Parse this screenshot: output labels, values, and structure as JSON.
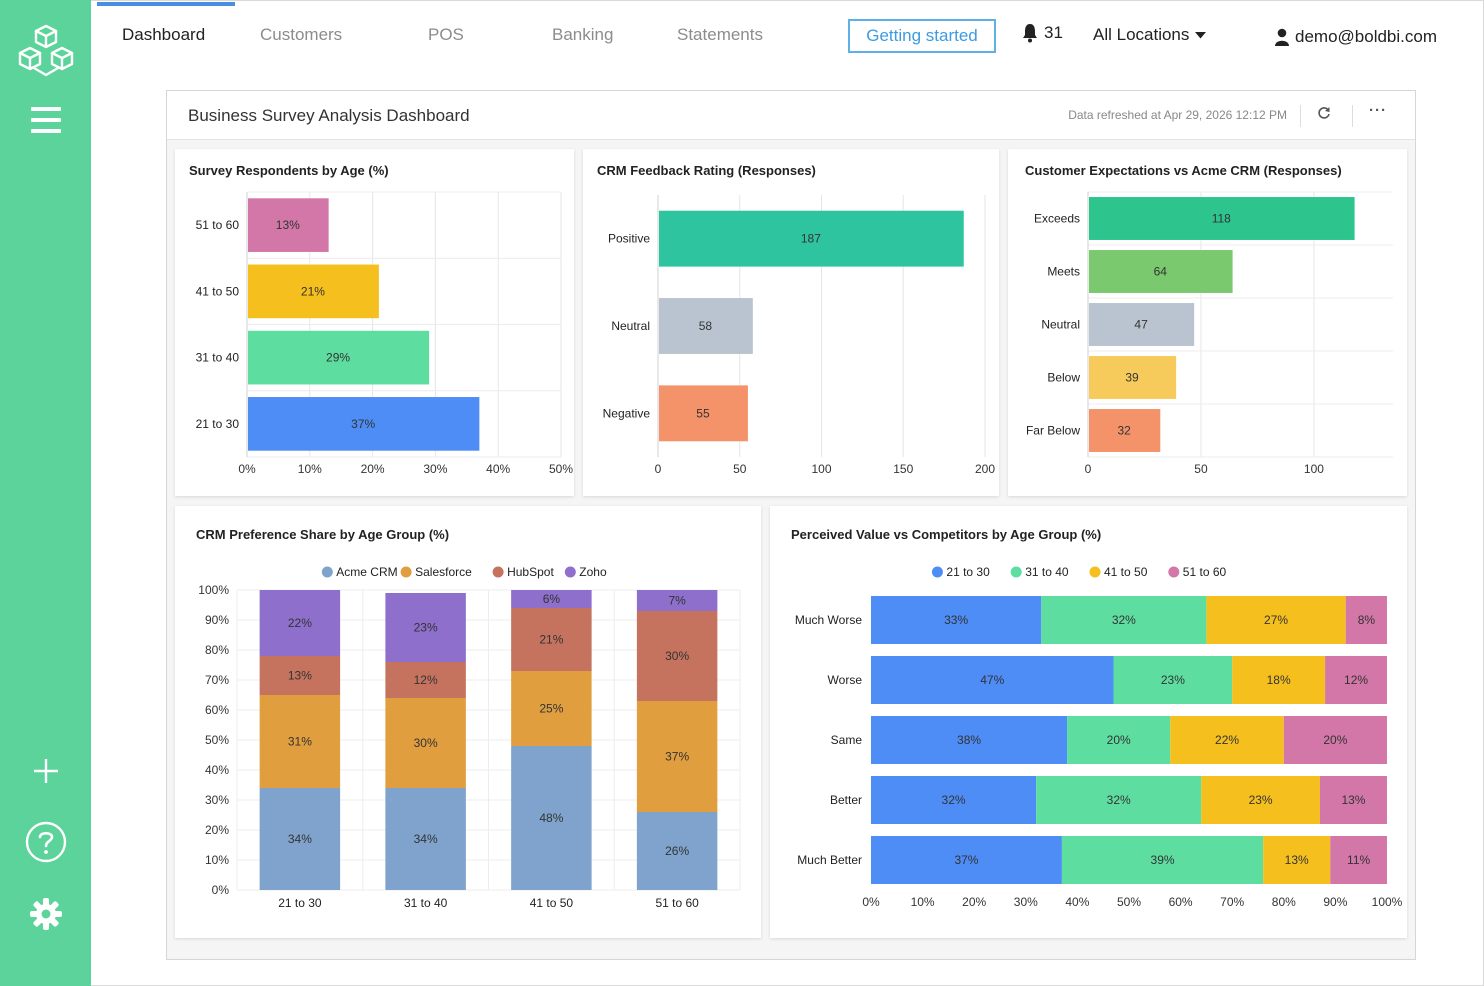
{
  "nav": {
    "tabs": [
      {
        "label": "Dashboard",
        "active": true
      },
      {
        "label": "Customers",
        "active": false
      },
      {
        "label": "POS",
        "active": false
      },
      {
        "label": "Banking",
        "active": false
      },
      {
        "label": "Statements",
        "active": false
      }
    ],
    "getting_started": "Getting started",
    "notifications_count": "31",
    "location": "All Locations",
    "user_email": "demo@boldbi.com"
  },
  "sidebar": {
    "icons": [
      "logo-cube-icon",
      "menu-icon",
      "add-icon",
      "help-icon",
      "settings-icon"
    ]
  },
  "dashboard": {
    "title": "Business Survey Analysis Dashboard",
    "refreshed": "Data refreshed at Apr 29, 2026 12:12 PM",
    "refresh_icon": "refresh-icon",
    "more_icon": "more-options-icon",
    "more_label": "···"
  },
  "colors": {
    "accent": "#5bd39a",
    "brand_blue": "#4a8ee0"
  },
  "chart_data": [
    {
      "id": "age",
      "type": "bar",
      "orientation": "horizontal",
      "title": "Survey Respondents by Age (%)",
      "categories": [
        "51 to 60",
        "41 to 50",
        "31 to 40",
        "21 to 30"
      ],
      "values": [
        13,
        21,
        29,
        37
      ],
      "labels": [
        "13%",
        "21%",
        "29%",
        "37%"
      ],
      "colors": [
        "#d277a8",
        "#f5bf1d",
        "#5ddea0",
        "#4e8cf6"
      ],
      "xlim": [
        0,
        50
      ],
      "ticks": [
        "0%",
        "10%",
        "20%",
        "30%",
        "40%",
        "50%"
      ]
    },
    {
      "id": "feedback",
      "type": "bar",
      "orientation": "horizontal",
      "title": "CRM Feedback Rating (Responses)",
      "categories": [
        "Positive",
        "Neutral",
        "Negative"
      ],
      "values": [
        187,
        58,
        55
      ],
      "labels": [
        "187",
        "58",
        "55"
      ],
      "colors": [
        "#2ec4a0",
        "#b9c4d0",
        "#f4926a"
      ],
      "xlim": [
        0,
        200
      ],
      "ticks": [
        "0",
        "50",
        "100",
        "150",
        "200"
      ]
    },
    {
      "id": "expect",
      "type": "bar",
      "orientation": "horizontal",
      "title": "Customer Expectations vs Acme CRM (Responses)",
      "categories": [
        "Exceeds",
        "Meets",
        "Neutral",
        "Below",
        "Far Below"
      ],
      "values": [
        118,
        64,
        47,
        39,
        32
      ],
      "labels": [
        "118",
        "64",
        "47",
        "39",
        "32"
      ],
      "colors": [
        "#2ec48e",
        "#7ac96e",
        "#b9c4d0",
        "#f7cb5b",
        "#f4926a"
      ],
      "xlim": [
        0,
        135
      ],
      "ticks": [
        "0",
        "50",
        "100"
      ],
      "tick_values": [
        0,
        50,
        100
      ]
    },
    {
      "id": "pref",
      "type": "bar",
      "orientation": "vertical",
      "stacked": true,
      "title": "CRM Preference Share by Age Group (%)",
      "categories": [
        "21 to 30",
        "31 to 40",
        "41 to 50",
        "51 to 60"
      ],
      "series": [
        {
          "name": "Acme CRM",
          "color": "#7fa3cc",
          "values": [
            34,
            34,
            48,
            26
          ]
        },
        {
          "name": "Salesforce",
          "color": "#e09e3f",
          "values": [
            31,
            30,
            25,
            37
          ]
        },
        {
          "name": "HubSpot",
          "color": "#c5735e",
          "values": [
            13,
            12,
            21,
            30
          ]
        },
        {
          "name": "Zoho",
          "color": "#8e6fcc",
          "values": [
            22,
            23,
            6,
            7
          ]
        }
      ],
      "ylim": [
        0,
        100
      ],
      "ticks": [
        "0%",
        "10%",
        "20%",
        "30%",
        "40%",
        "50%",
        "60%",
        "70%",
        "80%",
        "90%",
        "100%"
      ],
      "legend": "top"
    },
    {
      "id": "value",
      "type": "bar",
      "orientation": "horizontal",
      "stacked": true,
      "title": "Perceived Value vs Competitors by Age Group (%)",
      "categories": [
        "Much Worse",
        "Worse",
        "Same",
        "Better",
        "Much Better"
      ],
      "series": [
        {
          "name": "21 to 30",
          "color": "#4e8cf6",
          "values": [
            33,
            47,
            38,
            32,
            37
          ]
        },
        {
          "name": "31 to 40",
          "color": "#5ddea0",
          "values": [
            32,
            23,
            20,
            32,
            39
          ]
        },
        {
          "name": "41 to 50",
          "color": "#f5bf1d",
          "values": [
            27,
            18,
            22,
            23,
            13
          ]
        },
        {
          "name": "51 to 60",
          "color": "#d277a8",
          "values": [
            8,
            12,
            20,
            13,
            11
          ]
        }
      ],
      "xlim": [
        0,
        100
      ],
      "ticks": [
        "0%",
        "10%",
        "20%",
        "30%",
        "40%",
        "50%",
        "60%",
        "70%",
        "80%",
        "90%",
        "100%"
      ],
      "legend": "top"
    }
  ]
}
